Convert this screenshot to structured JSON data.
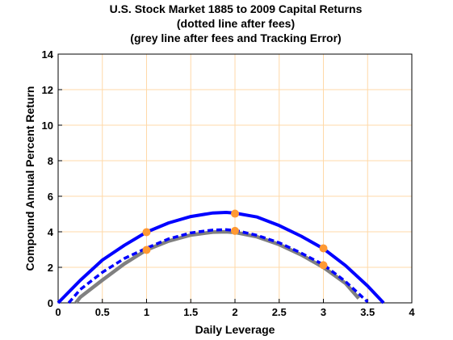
{
  "chart_data": {
    "type": "line",
    "title_lines": [
      "U.S. Stock Market 1885 to 2009 Capital Returns",
      "(dotted line after fees)",
      "(grey line after fees and Tracking Error)"
    ],
    "xlabel": "Daily Leverage",
    "ylabel": "Compound Annual Percent Return",
    "xlim": [
      0,
      4
    ],
    "ylim": [
      0,
      14
    ],
    "xticks": [
      "0",
      "0.5",
      "1",
      "1.5",
      "2",
      "2.5",
      "3",
      "3.5",
      "4"
    ],
    "yticks": [
      "0",
      "2",
      "4",
      "6",
      "8",
      "10",
      "12",
      "14"
    ],
    "grid": true,
    "grid_color": "#ffd9a8",
    "series": [
      {
        "color": "#0000ff",
        "style": "solid",
        "x": [
          0.0,
          0.25,
          0.5,
          0.75,
          1.0,
          1.25,
          1.5,
          1.75,
          1.9,
          2.0,
          2.25,
          2.5,
          2.75,
          3.0,
          3.25,
          3.5,
          3.68
        ],
        "y": [
          0.0,
          1.27,
          2.41,
          3.24,
          3.98,
          4.5,
          4.86,
          5.06,
          5.09,
          5.05,
          4.83,
          4.35,
          3.75,
          3.05,
          2.1,
          0.95,
          0.0
        ]
      },
      {
        "color": "#0000ff",
        "style": "dotted",
        "x": [
          0.12,
          0.25,
          0.5,
          0.75,
          1.0,
          1.25,
          1.5,
          1.75,
          1.9,
          2.0,
          2.25,
          2.5,
          2.75,
          3.0,
          3.25,
          3.5
        ],
        "y": [
          0.0,
          0.75,
          1.72,
          2.5,
          3.08,
          3.6,
          3.94,
          4.1,
          4.12,
          4.08,
          3.8,
          3.38,
          2.8,
          2.15,
          1.2,
          0.05
        ]
      },
      {
        "color": "#808080",
        "style": "solid",
        "x": [
          0.2,
          0.25,
          0.5,
          0.75,
          1.0,
          1.25,
          1.5,
          1.75,
          1.9,
          2.0,
          2.25,
          2.5,
          2.75,
          3.0,
          3.25,
          3.4
        ],
        "y": [
          0.0,
          0.32,
          1.28,
          2.2,
          2.98,
          3.48,
          3.82,
          3.98,
          4.0,
          3.97,
          3.72,
          3.28,
          2.7,
          2.0,
          1.1,
          0.25
        ]
      }
    ],
    "markers": {
      "color": "#ff9933",
      "points": [
        {
          "x": 1,
          "y": 3.98
        },
        {
          "x": 1,
          "y": 2.98
        },
        {
          "x": 2,
          "y": 5.02
        },
        {
          "x": 2,
          "y": 4.05
        },
        {
          "x": 3,
          "y": 3.07
        },
        {
          "x": 3,
          "y": 2.12
        }
      ]
    }
  }
}
